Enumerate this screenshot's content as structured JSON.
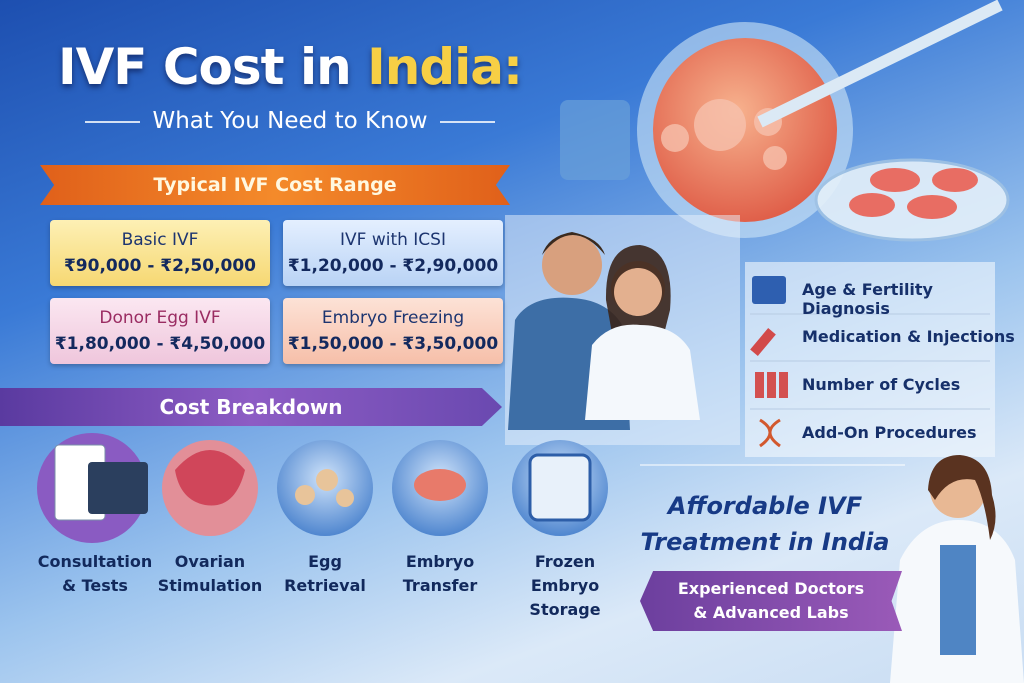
{
  "header": {
    "title": "IVF Cost in",
    "title_highlight": "India:",
    "subtitle": "What You Need to Know"
  },
  "cost_range": {
    "heading": "Typical IVF Cost Range",
    "items": [
      {
        "name": "Basic IVF",
        "range": "₹90,000 - ₹2,50,000"
      },
      {
        "name": "IVF with ICSI",
        "range": "₹1,20,000 - ₹2,90,000"
      },
      {
        "name": "Donor Egg IVF",
        "range": "₹1,80,000 - ₹4,50,000"
      },
      {
        "name": "Embryo Freezing",
        "range": "₹1,50,000 - ₹3,50,000"
      }
    ]
  },
  "breakdown": {
    "heading": "Cost Breakdown",
    "items": [
      [
        "Consultation",
        "& Tests"
      ],
      [
        "Ovarian",
        "Stimulation"
      ],
      [
        "Egg",
        "Retrieval"
      ],
      [
        "Embryo",
        "Transfer"
      ],
      [
        "Frozen",
        "Embryo Storage"
      ]
    ]
  },
  "factors": [
    "Age & Fertility Diagnosis",
    "Medication & Injections",
    "Number of Cycles",
    "Add-On Procedures"
  ],
  "promo": {
    "title": [
      "Affordable IVF",
      "Treatment in India"
    ],
    "banner": [
      "Experienced Doctors",
      "& Advanced Labs"
    ]
  }
}
